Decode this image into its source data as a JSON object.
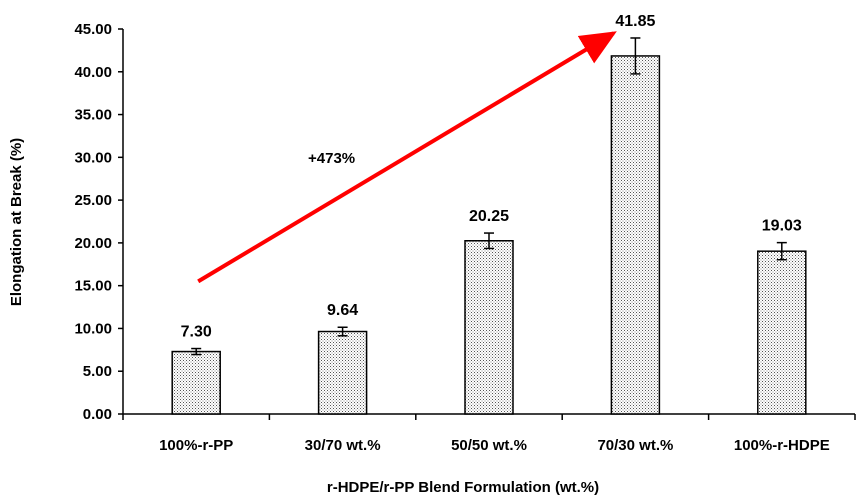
{
  "chart_data": {
    "type": "bar",
    "categories": [
      "100%-r-PP",
      "30/70 wt.%",
      "50/50 wt.%",
      "70/30 wt.%",
      "100%-r-HDPE"
    ],
    "values": [
      7.3,
      9.64,
      20.25,
      41.85,
      19.03
    ],
    "errors": [
      0.35,
      0.5,
      0.9,
      2.1,
      1.0
    ],
    "data_labels": [
      "7.30",
      "9.64",
      "20.25",
      "41.85",
      "19.03"
    ],
    "y_ticks": [
      "0.00",
      "5.00",
      "10.00",
      "15.00",
      "20.00",
      "25.00",
      "30.00",
      "35.00",
      "40.00",
      "45.00"
    ],
    "ylim": [
      0,
      45
    ],
    "title": "",
    "xlabel": "r-HDPE/r-PP Blend Formulation (wt.%)",
    "ylabel": "Elongation at Break (%)",
    "grid": false,
    "legend": "none",
    "bar_fill": "dotted",
    "annotation": {
      "text": "+473%",
      "arrow_color": "#ff0000",
      "arrow_from": {
        "category": "100%-r-PP",
        "y": 15.5
      },
      "arrow_to": {
        "category": "70/30 wt.%",
        "y": 44.5
      }
    }
  }
}
